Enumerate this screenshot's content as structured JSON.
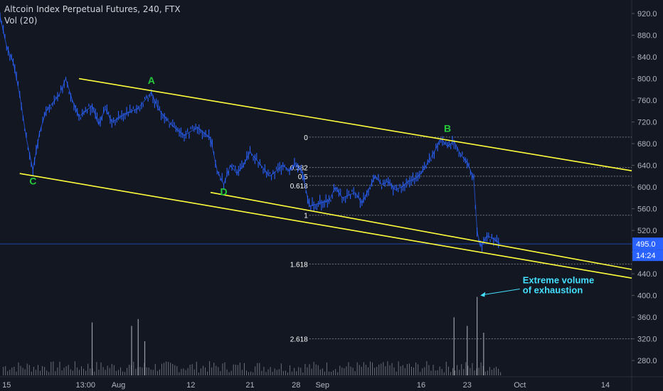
{
  "header": {
    "title": "Altcoin Index Perpetual Futures, 240, FTX",
    "indicator": "Vol (20)"
  },
  "colors": {
    "background": "#131722",
    "candle": "#2962ff",
    "channel": "#ffff3b",
    "fib_line": "#787b86",
    "pivot_label": "#26c93a",
    "annotation": "#45e0ff",
    "price_line": "#2962ff",
    "volume": "#b2b5be",
    "axis_text": "#b2b5be",
    "fib_text": "#ffffff"
  },
  "chart_data": {
    "type": "candlestick",
    "title": "Altcoin Index Perpetual Futures, 240, FTX",
    "timeframe": "240",
    "exchange": "FTX",
    "y_axis": {
      "range": [
        250,
        945
      ],
      "ticks": [
        280,
        320,
        360,
        400,
        440,
        480,
        520,
        560,
        600,
        640,
        680,
        720,
        760,
        800,
        840,
        880,
        920
      ],
      "tick_labels": [
        "280.0",
        "320.0",
        "360.0",
        "400.0",
        "440.0",
        "480.0",
        "520.0",
        "560.0",
        "600.0",
        "640.0",
        "680.0",
        "720.0",
        "760.0",
        "800.0",
        "840.0",
        "880.0",
        "920.0"
      ]
    },
    "x_axis": {
      "range": [
        "Jul 14",
        "Oct 18"
      ],
      "ticks": [
        {
          "date": "Jul 15",
          "label": "15"
        },
        {
          "date": "Jul 27",
          "label": "13:00"
        },
        {
          "date": "Aug 1",
          "label": "Aug"
        },
        {
          "date": "Aug 12",
          "label": "12"
        },
        {
          "date": "Aug 21",
          "label": "21"
        },
        {
          "date": "Aug 28",
          "label": "28"
        },
        {
          "date": "Sep 1",
          "label": "Sep"
        },
        {
          "date": "Sep 16",
          "label": "16"
        },
        {
          "date": "Sep 23",
          "label": "23"
        },
        {
          "date": "Oct 1",
          "label": "Oct"
        },
        {
          "date": "Oct 14",
          "label": "14"
        }
      ]
    },
    "price_path": [
      {
        "date": "Jul 14",
        "price": 915
      },
      {
        "date": "Jul 15",
        "price": 860
      },
      {
        "date": "Jul 16",
        "price": 830
      },
      {
        "date": "Jul 17",
        "price": 770
      },
      {
        "date": "Jul 18",
        "price": 690
      },
      {
        "date": "Jul 19",
        "price": 632
      },
      {
        "date": "Jul 20",
        "price": 700
      },
      {
        "date": "Jul 21",
        "price": 740
      },
      {
        "date": "Jul 23",
        "price": 770
      },
      {
        "date": "Jul 24",
        "price": 800
      },
      {
        "date": "Jul 25",
        "price": 760
      },
      {
        "date": "Jul 26",
        "price": 730
      },
      {
        "date": "Jul 28",
        "price": 750
      },
      {
        "date": "Jul 29",
        "price": 715
      },
      {
        "date": "Jul 30",
        "price": 745
      },
      {
        "date": "Jul 31",
        "price": 720
      },
      {
        "date": "Aug 2",
        "price": 735
      },
      {
        "date": "Aug 4",
        "price": 745
      },
      {
        "date": "Aug 6",
        "price": 775
      },
      {
        "date": "Aug 7",
        "price": 745
      },
      {
        "date": "Aug 9",
        "price": 715
      },
      {
        "date": "Aug 11",
        "price": 695
      },
      {
        "date": "Aug 13",
        "price": 710
      },
      {
        "date": "Aug 15",
        "price": 690
      },
      {
        "date": "Aug 16",
        "price": 630
      },
      {
        "date": "Aug 17",
        "price": 605
      },
      {
        "date": "Aug 18",
        "price": 640
      },
      {
        "date": "Aug 19",
        "price": 625
      },
      {
        "date": "Aug 20",
        "price": 640
      },
      {
        "date": "Aug 21",
        "price": 665
      },
      {
        "date": "Aug 22",
        "price": 650
      },
      {
        "date": "Aug 24",
        "price": 620
      },
      {
        "date": "Aug 26",
        "price": 640
      },
      {
        "date": "Aug 27",
        "price": 630
      },
      {
        "date": "Aug 28",
        "price": 645
      },
      {
        "date": "Aug 29",
        "price": 625
      },
      {
        "date": "Aug 30",
        "price": 565
      },
      {
        "date": "Sep 2",
        "price": 575
      },
      {
        "date": "Sep 3",
        "price": 600
      },
      {
        "date": "Sep 4",
        "price": 580
      },
      {
        "date": "Sep 6",
        "price": 590
      },
      {
        "date": "Sep 7",
        "price": 570
      },
      {
        "date": "Sep 8",
        "price": 595
      },
      {
        "date": "Sep 9",
        "price": 620
      },
      {
        "date": "Sep 10",
        "price": 605
      },
      {
        "date": "Sep 11",
        "price": 610
      },
      {
        "date": "Sep 12",
        "price": 595
      },
      {
        "date": "Sep 13",
        "price": 600
      },
      {
        "date": "Sep 14",
        "price": 610
      },
      {
        "date": "Sep 15",
        "price": 615
      },
      {
        "date": "Sep 16",
        "price": 625
      },
      {
        "date": "Sep 17",
        "price": 645
      },
      {
        "date": "Sep 18",
        "price": 665
      },
      {
        "date": "Sep 19",
        "price": 690
      },
      {
        "date": "Sep 20",
        "price": 675
      },
      {
        "date": "Sep 21",
        "price": 685
      },
      {
        "date": "Sep 22",
        "price": 660
      },
      {
        "date": "Sep 23",
        "price": 645
      },
      {
        "date": "Sep 24",
        "price": 615
      },
      {
        "date": "Sep 24.5",
        "price": 520
      },
      {
        "date": "Sep 25",
        "price": 490
      },
      {
        "date": "Sep 26",
        "price": 510
      },
      {
        "date": "Sep 27",
        "price": 505
      },
      {
        "date": "Sep 28",
        "price": 495
      }
    ],
    "current_price": {
      "value": 495,
      "label": "495.0",
      "countdown": "14:24"
    },
    "volume_spikes": [
      {
        "date": "Jul 28",
        "height": 0.62
      },
      {
        "date": "Aug 3",
        "height": 0.58
      },
      {
        "date": "Aug 4",
        "height": 0.66
      },
      {
        "date": "Aug 5",
        "height": 0.4
      },
      {
        "date": "Sep 21",
        "height": 0.68
      },
      {
        "date": "Sep 23",
        "height": 0.58
      },
      {
        "date": "Sep 24.5",
        "height": 0.92
      },
      {
        "date": "Sep 25.5",
        "height": 0.5
      }
    ],
    "pivot_labels": [
      {
        "label": "A",
        "date": "Aug 6",
        "price": 790
      },
      {
        "label": "B",
        "date": "Sep 20",
        "price": 702
      },
      {
        "label": "C",
        "date": "Jul 19",
        "price": 605
      },
      {
        "label": "D",
        "date": "Aug 17",
        "price": 585
      }
    ],
    "channel_lines": [
      {
        "from": {
          "date": "Jul 26",
          "price": 800
        },
        "to": {
          "date": "Oct 18",
          "price": 630
        }
      },
      {
        "from": {
          "date": "Jul 17",
          "price": 625
        },
        "to": {
          "date": "Oct 18",
          "price": 432
        }
      },
      {
        "from": {
          "date": "Aug 15",
          "price": 590
        },
        "to": {
          "date": "Oct 18",
          "price": 448
        }
      }
    ],
    "fibonacci": {
      "start_date": "Aug 30",
      "end_date": "Oct 18",
      "levels": [
        {
          "label": "0",
          "price": 692
        },
        {
          "label": "0.382",
          "price": 636
        },
        {
          "label": "0.5",
          "price": 620
        },
        {
          "label": "0.618",
          "price": 603
        },
        {
          "label": "1",
          "price": 548
        },
        {
          "label": "1.618",
          "price": 458
        },
        {
          "label": "2.618",
          "price": 320
        }
      ]
    },
    "annotation": {
      "text_lines": [
        "Extreme volume",
        "of exhaustion"
      ],
      "arrow_from": {
        "date": "Oct 1",
        "price": 412
      },
      "arrow_to": {
        "date": "Sep 25",
        "price": 400
      }
    }
  }
}
